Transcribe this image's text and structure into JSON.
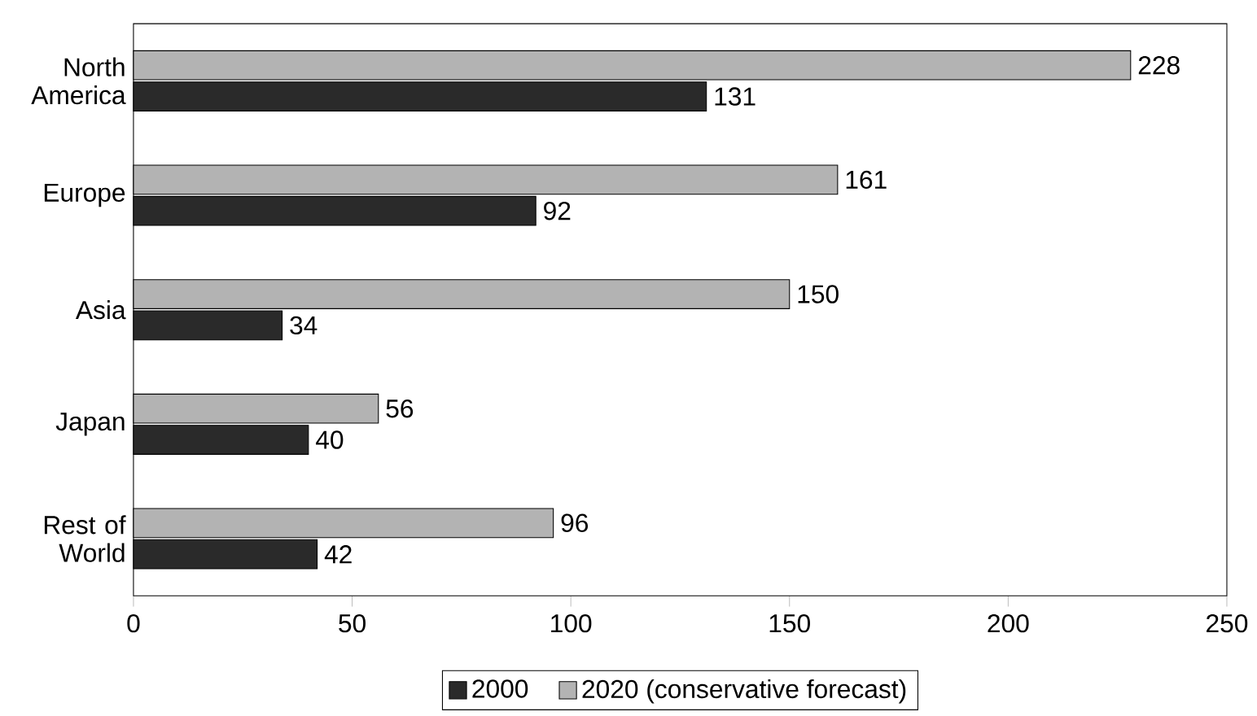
{
  "chart_data": {
    "type": "bar",
    "orientation": "horizontal",
    "categories": [
      "North America",
      "Europe",
      "Asia",
      "Japan",
      "Rest of World"
    ],
    "series": [
      {
        "name": "2000",
        "color": "#2a2a2a",
        "values": [
          131,
          92,
          34,
          40,
          42
        ]
      },
      {
        "name": "2020 (conservative forecast)",
        "color": "#b3b3b3",
        "values": [
          228,
          161,
          150,
          56,
          96
        ]
      }
    ],
    "xlim": [
      0,
      250
    ],
    "xticks": [
      0,
      50,
      100,
      150,
      200,
      250
    ],
    "data_labels": true,
    "legend": "bottom",
    "grid": false
  }
}
